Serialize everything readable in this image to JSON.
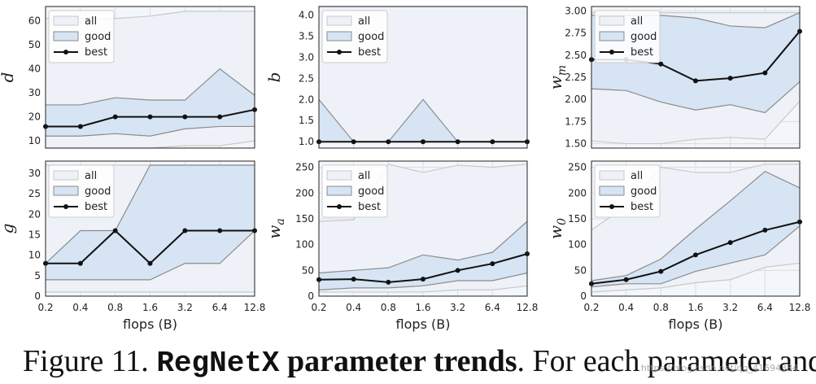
{
  "figure": {
    "x_label": "flops (B)",
    "caption": {
      "prefix": "Figure 11. ",
      "name": "RegNetX",
      "bold_rest": " parameter trends",
      "rest": ". For each parameter and"
    },
    "watermark": "https://blog.csdn.net/qq_41694384"
  },
  "colors": {
    "all_fill": "#eef2f8",
    "all_line": "#c8c8c8",
    "good_fill": "#d6e4f3",
    "good_line": "#8c8c8c",
    "best_line": "#111111",
    "grid": "#dddddd",
    "panel_bg": "#f3f6fa"
  },
  "chart_data": [
    {
      "type": "line",
      "ylabel": "d",
      "ylabel_sub": "",
      "xticks": [
        "0.2",
        "0.4",
        "0.8",
        "1.6",
        "3.2",
        "6.4",
        "12.8"
      ],
      "show_xticks": false,
      "ylim": [
        7,
        66
      ],
      "yticks": [
        "10",
        "20",
        "30",
        "40",
        "50",
        "60"
      ],
      "ytick_vals": [
        10,
        20,
        30,
        40,
        50,
        60
      ],
      "legend": [
        "all",
        "good",
        "best"
      ],
      "series": [
        {
          "name": "all",
          "upper": [
            61,
            61,
            61,
            62,
            64,
            64,
            64
          ],
          "lower": [
            7,
            7,
            7,
            7,
            8,
            8,
            10
          ]
        },
        {
          "name": "good",
          "upper": [
            25,
            25,
            28,
            27,
            27,
            40,
            29
          ],
          "lower": [
            12,
            12,
            13,
            12,
            15,
            16,
            16
          ]
        },
        {
          "name": "best",
          "values": [
            16,
            16,
            20,
            20,
            20,
            20,
            23
          ]
        }
      ]
    },
    {
      "type": "line",
      "ylabel": "b",
      "ylabel_sub": "",
      "xticks": [
        "0.2",
        "0.4",
        "0.8",
        "1.6",
        "3.2",
        "6.4",
        "12.8"
      ],
      "show_xticks": false,
      "ylim": [
        0.85,
        4.2
      ],
      "yticks": [
        "1.0",
        "1.5",
        "2.0",
        "2.5",
        "3.0",
        "3.5",
        "4.0"
      ],
      "ytick_vals": [
        1,
        1.5,
        2,
        2.5,
        3,
        3.5,
        4
      ],
      "legend": [
        "all",
        "good",
        "best"
      ],
      "series": [
        {
          "name": "all",
          "upper": [
            4.2,
            4.2,
            4.2,
            4.2,
            4.2,
            4.2,
            4.2
          ],
          "lower": [
            1,
            1,
            1,
            1,
            1,
            1,
            1
          ]
        },
        {
          "name": "good",
          "upper": [
            2,
            1,
            1,
            2,
            1,
            1,
            1
          ],
          "lower": [
            1,
            1,
            1,
            1,
            1,
            1,
            1
          ]
        },
        {
          "name": "best",
          "values": [
            1,
            1,
            1,
            1,
            1,
            1,
            1
          ]
        }
      ]
    },
    {
      "type": "line",
      "ylabel": "w",
      "ylabel_sub": "m",
      "xticks": [
        "0.2",
        "0.4",
        "0.8",
        "1.6",
        "3.2",
        "6.4",
        "12.8"
      ],
      "show_xticks": false,
      "ylim": [
        1.45,
        3.05
      ],
      "yticks": [
        "1.50",
        "1.75",
        "2.00",
        "2.25",
        "2.50",
        "2.75",
        "3.00"
      ],
      "ytick_vals": [
        1.5,
        1.75,
        2,
        2.25,
        2.5,
        2.75,
        3
      ],
      "legend": [
        "all",
        "good",
        "best"
      ],
      "series": [
        {
          "name": "all",
          "upper": [
            2.98,
            2.98,
            2.98,
            2.98,
            2.98,
            2.98,
            2.98
          ],
          "lower": [
            1.53,
            1.5,
            1.5,
            1.55,
            1.57,
            1.55,
            1.98
          ]
        },
        {
          "name": "good",
          "upper": [
            2.95,
            2.95,
            2.95,
            2.92,
            2.83,
            2.81,
            2.98
          ],
          "lower": [
            2.12,
            2.1,
            1.97,
            1.88,
            1.94,
            1.85,
            2.2
          ]
        },
        {
          "name": "best",
          "values": [
            2.45,
            2.45,
            2.4,
            2.21,
            2.24,
            2.3,
            2.77
          ]
        }
      ]
    },
    {
      "type": "line",
      "ylabel": "g",
      "ylabel_sub": "",
      "xticks": [
        "0.2",
        "0.4",
        "0.8",
        "1.6",
        "3.2",
        "6.4",
        "12.8"
      ],
      "show_xticks": true,
      "ylim": [
        0,
        33
      ],
      "yticks": [
        "0",
        "5",
        "10",
        "15",
        "20",
        "25",
        "30"
      ],
      "ytick_vals": [
        0,
        5,
        10,
        15,
        20,
        25,
        30
      ],
      "legend": [
        "all",
        "good",
        "best"
      ],
      "series": [
        {
          "name": "all",
          "upper": [
            32,
            32,
            32,
            32,
            32,
            32,
            32
          ],
          "lower": [
            1,
            1,
            1,
            1,
            1,
            1,
            1
          ]
        },
        {
          "name": "good",
          "upper": [
            8,
            16,
            16,
            32,
            32,
            32,
            32
          ],
          "lower": [
            4,
            4,
            4,
            4,
            8,
            8,
            16
          ]
        },
        {
          "name": "best",
          "values": [
            8,
            8,
            16,
            8,
            16,
            16,
            16
          ]
        }
      ]
    },
    {
      "type": "line",
      "ylabel": "w",
      "ylabel_sub": "a",
      "xticks": [
        "0.2",
        "0.4",
        "0.8",
        "1.6",
        "3.2",
        "6.4",
        "12.8"
      ],
      "show_xticks": true,
      "ylim": [
        0,
        262
      ],
      "yticks": [
        "0",
        "50",
        "100",
        "150",
        "200",
        "250"
      ],
      "ytick_vals": [
        0,
        50,
        100,
        150,
        200,
        250
      ],
      "legend": [
        "all",
        "good",
        "best"
      ],
      "series": [
        {
          "name": "all",
          "upper": [
            145,
            148,
            256,
            240,
            254,
            250,
            256
          ],
          "lower": [
            8,
            8,
            8,
            8,
            12,
            12,
            20
          ]
        },
        {
          "name": "good",
          "upper": [
            45,
            50,
            55,
            80,
            70,
            85,
            145
          ],
          "lower": [
            12,
            16,
            16,
            20,
            30,
            30,
            45
          ]
        },
        {
          "name": "best",
          "values": [
            32,
            33,
            27,
            33,
            50,
            63,
            82
          ]
        }
      ]
    },
    {
      "type": "line",
      "ylabel": "w",
      "ylabel_sub": "0",
      "xticks": [
        "0.2",
        "0.4",
        "0.8",
        "1.6",
        "3.2",
        "6.4",
        "12.8"
      ],
      "show_xticks": true,
      "ylim": [
        0,
        262
      ],
      "yticks": [
        "0",
        "50",
        "100",
        "150",
        "200",
        "250"
      ],
      "ytick_vals": [
        0,
        50,
        100,
        150,
        200,
        250
      ],
      "legend": [
        "all",
        "good",
        "best"
      ],
      "series": [
        {
          "name": "all",
          "upper": [
            128,
            175,
            250,
            240,
            240,
            256,
            256
          ],
          "lower": [
            8,
            12,
            16,
            26,
            32,
            56,
            64
          ]
        },
        {
          "name": "good",
          "upper": [
            30,
            40,
            72,
            130,
            185,
            242,
            210
          ],
          "lower": [
            18,
            24,
            24,
            48,
            64,
            80,
            136
          ]
        },
        {
          "name": "best",
          "values": [
            24,
            32,
            48,
            80,
            104,
            128,
            144
          ]
        }
      ]
    }
  ]
}
